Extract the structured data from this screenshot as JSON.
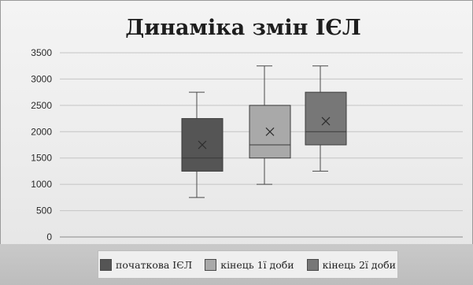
{
  "chart_data": {
    "type": "box",
    "title": "Динаміка змін ІЄЛ",
    "ylim": [
      0,
      3500
    ],
    "yticks": [
      "0",
      "500",
      "1000",
      "1500",
      "2000",
      "2500",
      "3000",
      "3500"
    ],
    "grid": true,
    "legend_position": "bottom",
    "series": [
      {
        "name": "початкова ІЄЛ",
        "color": "#555555",
        "min": 750,
        "q1": 1250,
        "median": 1500,
        "q3": 2250,
        "max": 2750,
        "mean": 1750
      },
      {
        "name": "кінець 1ї доби",
        "color": "#a9a9a9",
        "min": 1000,
        "q1": 1500,
        "median": 1750,
        "q3": 2500,
        "max": 3250,
        "mean": 2000
      },
      {
        "name": "кінець 2ї доби",
        "color": "#777777",
        "min": 1250,
        "q1": 1750,
        "median": 2000,
        "q3": 2750,
        "max": 3250,
        "mean": 2200
      }
    ]
  }
}
